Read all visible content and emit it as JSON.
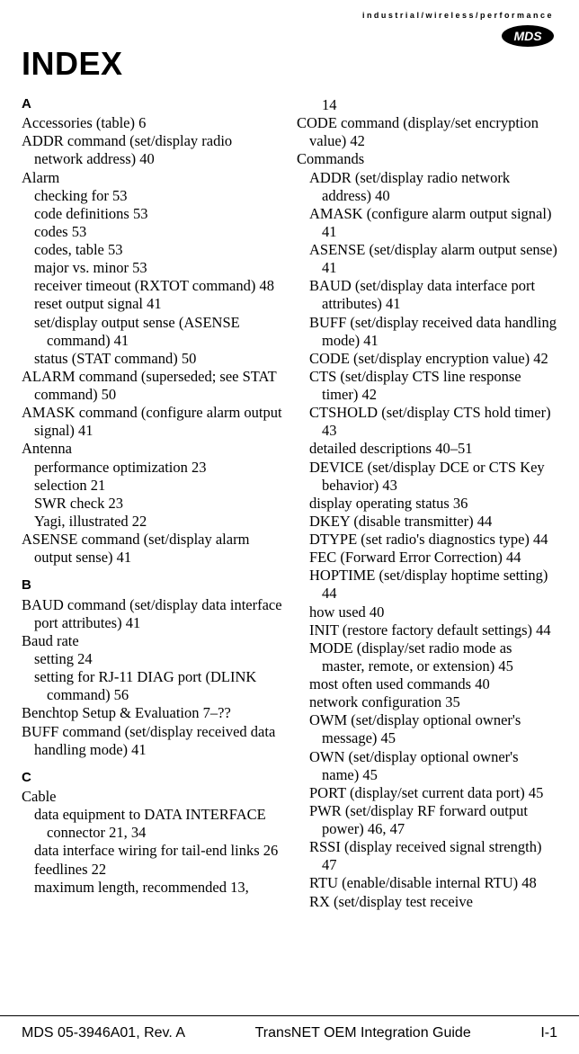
{
  "top_tag": "industrial/wireless/performance",
  "logo_text": "MDS",
  "title": "INDEX",
  "letters": {
    "A": "A",
    "B": "B",
    "C": "C"
  },
  "left": {
    "a": [
      {
        "cls": "i0",
        "t": "Accessories (table)  6"
      },
      {
        "cls": "i1",
        "t": "ADDR command (set/display radio network address)  40"
      },
      {
        "cls": "i0",
        "t": "Alarm"
      },
      {
        "cls": "s1",
        "t": "checking for  53"
      },
      {
        "cls": "s1",
        "t": "code definitions  53"
      },
      {
        "cls": "s1",
        "t": "codes  53"
      },
      {
        "cls": "s1",
        "t": "codes, table  53"
      },
      {
        "cls": "s1",
        "t": "major vs. minor  53"
      },
      {
        "cls": "s1",
        "t": "receiver timeout (RXTOT command)  48"
      },
      {
        "cls": "s1",
        "t": "reset output signal  41"
      },
      {
        "cls": "s1",
        "t": "set/display output sense (ASENSE command)  41"
      },
      {
        "cls": "s1",
        "t": "status (STAT command)  50"
      },
      {
        "cls": "i1",
        "t": "ALARM command (superseded; see STAT command)  50"
      },
      {
        "cls": "i1",
        "t": "AMASK command (configure alarm output signal)  41"
      },
      {
        "cls": "i0",
        "t": "Antenna"
      },
      {
        "cls": "s1",
        "t": "performance optimization  23"
      },
      {
        "cls": "s1",
        "t": "selection  21"
      },
      {
        "cls": "s1",
        "t": "SWR check  23"
      },
      {
        "cls": "s1",
        "t": "Yagi, illustrated  22"
      },
      {
        "cls": "i1",
        "t": "ASENSE command (set/display alarm output sense)  41"
      }
    ],
    "b": [
      {
        "cls": "i1",
        "t": "BAUD command (set/display data interface port attributes)  41"
      },
      {
        "cls": "i0",
        "t": "Baud rate"
      },
      {
        "cls": "s1",
        "t": "setting  24"
      },
      {
        "cls": "s1",
        "t": "setting for RJ-11 DIAG port (DLINK command)  56"
      },
      {
        "cls": "i0",
        "t": "Benchtop Setup & Evaluation  7–??"
      },
      {
        "cls": "i1",
        "t": "BUFF command (set/display received data handling mode)  41"
      }
    ],
    "c": [
      {
        "cls": "i0",
        "t": "Cable"
      },
      {
        "cls": "s1",
        "t": "data equipment to DATA INTERFACE connector  21, 34"
      },
      {
        "cls": "s1",
        "t": "data interface wiring for tail-end links  26"
      },
      {
        "cls": "s1",
        "t": "feedlines  22"
      },
      {
        "cls": "s1",
        "t": "maximum length, recommended  13,"
      }
    ]
  },
  "right": [
    {
      "cls": "s2 topline",
      "t": "14"
    },
    {
      "cls": "i1",
      "t": "CODE command (display/set encryption value)  42"
    },
    {
      "cls": "i0",
      "t": "Commands"
    },
    {
      "cls": "s1",
      "t": "ADDR (set/display radio network address)  40"
    },
    {
      "cls": "s1",
      "t": "AMASK (configure alarm output signal)  41"
    },
    {
      "cls": "s1",
      "t": "ASENSE (set/display alarm output sense)  41"
    },
    {
      "cls": "s1",
      "t": "BAUD (set/display data interface port attributes)  41"
    },
    {
      "cls": "s1",
      "t": "BUFF (set/display received data handling mode)  41"
    },
    {
      "cls": "s1",
      "t": "CODE (set/display encryption value)  42"
    },
    {
      "cls": "s1",
      "t": "CTS (set/display CTS line response timer)  42"
    },
    {
      "cls": "s1",
      "t": "CTSHOLD (set/display CTS hold timer)  43"
    },
    {
      "cls": "s1",
      "t": "detailed descriptions  40–51"
    },
    {
      "cls": "s1",
      "t": "DEVICE (set/display DCE or CTS Key behavior)  43"
    },
    {
      "cls": "s1",
      "t": "display operating status  36"
    },
    {
      "cls": "s1",
      "t": "DKEY (disable transmitter)  44"
    },
    {
      "cls": "s1",
      "t": "DTYPE (set radio's diagnostics type)  44"
    },
    {
      "cls": "s1",
      "t": "FEC (Forward Error Correction)  44"
    },
    {
      "cls": "s1",
      "t": "HOPTIME (set/display hoptime setting)  44"
    },
    {
      "cls": "s1",
      "t": "how used  40"
    },
    {
      "cls": "s1",
      "t": "INIT (restore factory default settings)  44"
    },
    {
      "cls": "s1",
      "t": "MODE (display/set radio mode as master, remote, or extension)  45"
    },
    {
      "cls": "s1",
      "t": "most often used commands  40"
    },
    {
      "cls": "s1",
      "t": "network configuration  35"
    },
    {
      "cls": "s1",
      "t": "OWM (set/display optional owner's message)  45"
    },
    {
      "cls": "s1",
      "t": "OWN (set/display optional owner's name)  45"
    },
    {
      "cls": "s1",
      "t": "PORT (display/set current data port)  45"
    },
    {
      "cls": "s1",
      "t": "PWR (set/display RF forward output power)  46, 47"
    },
    {
      "cls": "s1",
      "t": "RSSI (display received signal strength)  47"
    },
    {
      "cls": "s1",
      "t": "RTU (enable/disable internal RTU)  48"
    },
    {
      "cls": "s1",
      "t": "RX (set/display test receive"
    }
  ],
  "footer": {
    "left": "MDS 05-3946A01, Rev. A",
    "center": "TransNET OEM Integration Guide",
    "right": "I-1"
  }
}
